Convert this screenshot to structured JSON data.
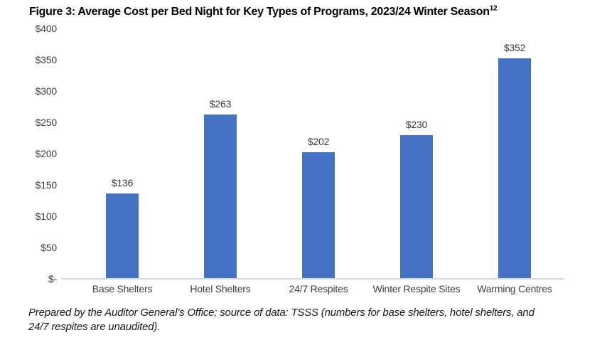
{
  "title": {
    "text": "Figure 3: Average Cost per Bed Night for Key Types of Programs, 2023/24 Winter Season",
    "superscript": "12"
  },
  "footer": {
    "line1": "Prepared by the Auditor General’s Office; source of data: TSSS (numbers for base shelters, hotel shelters, and",
    "line2": "24/7 respites are unaudited)."
  },
  "colors": {
    "bar": "#4472C4",
    "axis_line": "#D9D9D9",
    "tick_label": "#404040",
    "data_label": "#3a3a3a",
    "title": "#000000"
  },
  "chart_data": {
    "type": "bar",
    "title": "Figure 3: Average Cost per Bed Night for Key Types of Programs, 2023/24 Winter Season",
    "categories": [
      "Base Shelters",
      "Hotel Shelters",
      "24/7 Respites",
      "Winter Respite Sites",
      "Warming Centres"
    ],
    "values": [
      136,
      263,
      202,
      230,
      352
    ],
    "data_labels": [
      "$136",
      "$263",
      "$202",
      "$230",
      "$352"
    ],
    "series_color": "#4472C4",
    "xlabel": "",
    "ylabel": "",
    "ylim": [
      0,
      400
    ],
    "grid": false,
    "legend": "none",
    "y_ticks": [
      {
        "value": 400,
        "label": "$400"
      },
      {
        "value": 350,
        "label": "$350"
      },
      {
        "value": 300,
        "label": "$300"
      },
      {
        "value": 250,
        "label": "$250"
      },
      {
        "value": 200,
        "label": "$200"
      },
      {
        "value": 150,
        "label": "$150"
      },
      {
        "value": 100,
        "label": "$100"
      },
      {
        "value": 50,
        "label": "$50"
      },
      {
        "value": 0,
        "label": "$-"
      }
    ]
  }
}
